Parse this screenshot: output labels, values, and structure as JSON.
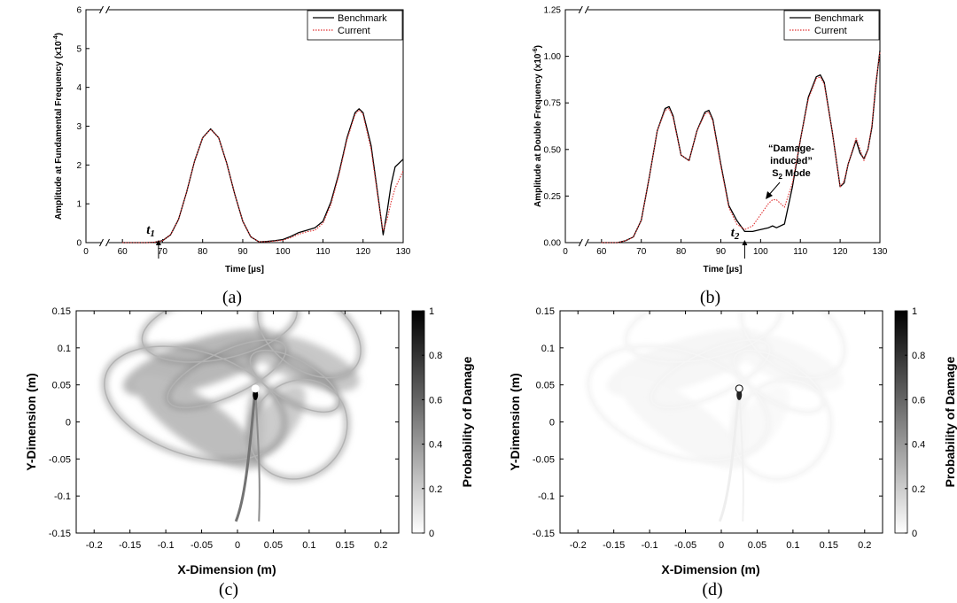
{
  "chart_data": [
    {
      "id": "a",
      "type": "line",
      "panel_label": "(a)",
      "xlabel": "Time [µs]",
      "ylabel": "Amplitude at Fundamental Frequency (x10",
      "ylabel_exp": "-4",
      "ylabel_close": ")",
      "xlim": [
        0,
        130
      ],
      "ylim": [
        0,
        6
      ],
      "x_ticks": [
        0,
        60,
        70,
        80,
        90,
        100,
        110,
        120,
        130
      ],
      "y_ticks": [
        0,
        1,
        2,
        3,
        4,
        5,
        6
      ],
      "legend_position": "top-right",
      "series": [
        {
          "name": "Benchmark",
          "color": "#000000",
          "style": "solid",
          "x": [
            60,
            66,
            68,
            70,
            72,
            74,
            76,
            78,
            80,
            82,
            84,
            86,
            88,
            90,
            92,
            94,
            96,
            98,
            100,
            102,
            104,
            106,
            108,
            110,
            112,
            114,
            116,
            118,
            119,
            120,
            122,
            124,
            125,
            126,
            127,
            128,
            130
          ],
          "y": [
            0,
            0,
            0.01,
            0.05,
            0.2,
            0.6,
            1.3,
            2.1,
            2.7,
            2.93,
            2.7,
            2.05,
            1.25,
            0.55,
            0.15,
            0.02,
            0.03,
            0.05,
            0.08,
            0.16,
            0.26,
            0.32,
            0.38,
            0.55,
            1.05,
            1.8,
            2.7,
            3.35,
            3.45,
            3.35,
            2.5,
            1.0,
            0.2,
            0.8,
            1.5,
            1.95,
            2.15
          ]
        },
        {
          "name": "Current",
          "color": "#e03030",
          "style": "dotted",
          "x": [
            60,
            66,
            68,
            70,
            72,
            74,
            76,
            78,
            80,
            82,
            84,
            86,
            88,
            90,
            92,
            94,
            96,
            98,
            100,
            102,
            104,
            106,
            108,
            110,
            112,
            114,
            116,
            118,
            119,
            120,
            122,
            124,
            125,
            126,
            127,
            128,
            130
          ],
          "y": [
            0,
            0,
            0.01,
            0.05,
            0.2,
            0.6,
            1.3,
            2.1,
            2.7,
            2.92,
            2.7,
            2.05,
            1.25,
            0.55,
            0.15,
            0.02,
            0.02,
            0.04,
            0.06,
            0.13,
            0.22,
            0.28,
            0.32,
            0.5,
            0.98,
            1.75,
            2.65,
            3.3,
            3.42,
            3.3,
            2.4,
            0.95,
            0.3,
            0.6,
            1.05,
            1.4,
            1.85
          ]
        }
      ],
      "annotation": {
        "label": "t",
        "sub": "1",
        "x": 69
      }
    },
    {
      "id": "b",
      "type": "line",
      "panel_label": "(b)",
      "xlabel": "Time [µs]",
      "ylabel": "Amplitude at Double Frequency (x10",
      "ylabel_exp": "-6",
      "ylabel_close": ")",
      "xlim": [
        0,
        130
      ],
      "ylim": [
        0,
        1.25
      ],
      "x_ticks": [
        0,
        60,
        70,
        80,
        90,
        100,
        110,
        120,
        130
      ],
      "y_ticks": [
        0.0,
        0.25,
        0.5,
        0.75,
        1.0,
        1.25
      ],
      "y_tick_labels": [
        "0.00",
        "0.25",
        "0.50",
        "0.75",
        "1.00",
        "1.25"
      ],
      "legend_position": "top-right",
      "series": [
        {
          "name": "Benchmark",
          "color": "#000000",
          "style": "solid",
          "x": [
            60,
            64,
            66,
            68,
            70,
            72,
            74,
            76,
            77,
            78,
            80,
            82,
            84,
            86,
            87,
            88,
            90,
            92,
            94,
            96,
            98,
            100,
            102,
            103,
            104,
            106,
            108,
            110,
            112,
            114,
            115,
            116,
            118,
            120,
            121,
            122,
            124,
            125,
            126,
            127,
            128,
            129,
            130
          ],
          "y": [
            0,
            0,
            0.01,
            0.03,
            0.12,
            0.35,
            0.6,
            0.72,
            0.73,
            0.68,
            0.47,
            0.44,
            0.6,
            0.7,
            0.71,
            0.66,
            0.42,
            0.2,
            0.12,
            0.06,
            0.06,
            0.07,
            0.08,
            0.09,
            0.08,
            0.1,
            0.3,
            0.55,
            0.78,
            0.89,
            0.9,
            0.86,
            0.6,
            0.3,
            0.32,
            0.42,
            0.55,
            0.48,
            0.45,
            0.5,
            0.62,
            0.85,
            1.03
          ]
        },
        {
          "name": "Current",
          "color": "#e03030",
          "style": "dotted",
          "x": [
            60,
            64,
            66,
            68,
            70,
            72,
            74,
            76,
            77,
            78,
            80,
            82,
            84,
            86,
            87,
            88,
            90,
            92,
            94,
            96,
            98,
            100,
            102,
            103,
            104,
            106,
            108,
            110,
            112,
            114,
            115,
            116,
            118,
            120,
            121,
            122,
            124,
            125,
            126,
            127,
            128,
            129,
            130
          ],
          "y": [
            0,
            0,
            0.01,
            0.03,
            0.12,
            0.35,
            0.6,
            0.71,
            0.72,
            0.67,
            0.47,
            0.44,
            0.6,
            0.69,
            0.7,
            0.65,
            0.41,
            0.19,
            0.1,
            0.07,
            0.09,
            0.15,
            0.21,
            0.23,
            0.23,
            0.19,
            0.32,
            0.55,
            0.77,
            0.88,
            0.89,
            0.85,
            0.6,
            0.3,
            0.33,
            0.42,
            0.56,
            0.5,
            0.44,
            0.5,
            0.63,
            0.86,
            1.02
          ]
        }
      ],
      "annotation": {
        "label": "t",
        "sub": "2",
        "x": 96
      },
      "callout": {
        "line1": "“Damage-",
        "line2": "induced”",
        "line3a": "S",
        "line3sub": "2",
        "line3b": " Mode"
      }
    },
    {
      "id": "c",
      "type": "heatmap",
      "panel_label": "(c)",
      "xlabel": "X-Dimension (m)",
      "ylabel": "Y-Dimension (m)",
      "colorbar_label": "Probability of Damage",
      "xlim": [
        -0.225,
        0.225
      ],
      "ylim": [
        -0.15,
        0.15
      ],
      "x_ticks": [
        -0.2,
        -0.15,
        -0.1,
        -0.05,
        0,
        0.05,
        0.1,
        0.15,
        0.2
      ],
      "x_tick_labels": [
        "-0.2",
        "-0.15",
        "-0.1",
        "-0.05",
        "0",
        "0.05",
        "0.1",
        "0.15",
        "0.2"
      ],
      "y_ticks": [
        0.15,
        0.1,
        0.05,
        0,
        -0.05,
        -0.1,
        -0.15
      ],
      "y_tick_labels": [
        "0.15",
        "0.1",
        "0.05",
        "0",
        "-0.05",
        "-0.1",
        "-0.15"
      ],
      "colorbar_ticks": [
        1,
        0.8,
        0.6,
        0.4,
        0.2,
        0
      ],
      "colorbar_tick_labels": [
        "1",
        "0.8",
        "0.6",
        "0.4",
        "0.2",
        "0"
      ],
      "damage_location": [
        0.025,
        0.045
      ],
      "intensity": 1.0
    },
    {
      "id": "d",
      "type": "heatmap",
      "panel_label": "(d)",
      "xlabel": "X-Dimension (m)",
      "ylabel": "Y-Dimension (m)",
      "colorbar_label": "Probability of Damage",
      "xlim": [
        -0.225,
        0.225
      ],
      "ylim": [
        -0.15,
        0.15
      ],
      "x_ticks": [
        -0.2,
        -0.15,
        -0.1,
        -0.05,
        0,
        0.05,
        0.1,
        0.15,
        0.2
      ],
      "x_tick_labels": [
        "-0.2",
        "-0.15",
        "-0.1",
        "-0.05",
        "0",
        "0.05",
        "0.1",
        "0.15",
        "0.2"
      ],
      "y_ticks": [
        0.15,
        0.1,
        0.05,
        0,
        -0.05,
        -0.1,
        -0.15
      ],
      "y_tick_labels": [
        "0.15",
        "0.1",
        "0.05",
        "0",
        "-0.05",
        "-0.1",
        "-0.15"
      ],
      "colorbar_ticks": [
        1,
        0.8,
        0.6,
        0.4,
        0.2,
        0
      ],
      "colorbar_tick_labels": [
        "1",
        "0.8",
        "0.6",
        "0.4",
        "0.2",
        "0"
      ],
      "damage_location": [
        0.025,
        0.045
      ],
      "intensity": 0.12
    }
  ]
}
